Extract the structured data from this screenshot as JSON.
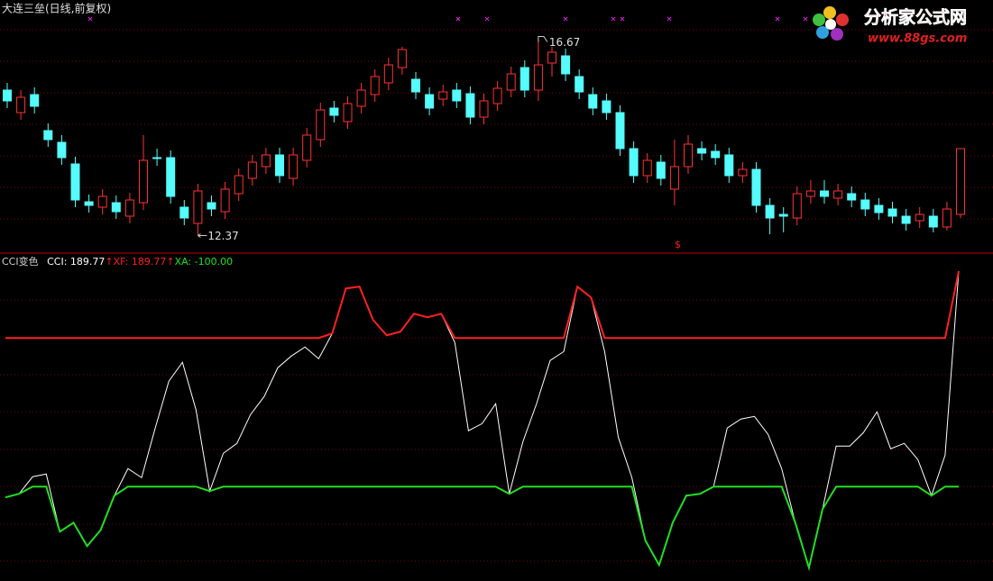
{
  "header": {
    "title": "大连三垒(日线,前复权)"
  },
  "logo": {
    "name": "分析家公式网",
    "url": "www.88gs.com"
  },
  "chart_data": [
    {
      "type": "candlestick",
      "open": [
        15.6,
        15.1,
        15.5,
        14.7,
        14.44,
        13.96,
        13.12,
        13.0,
        13.1,
        12.8,
        13.1,
        14.1,
        14.1,
        13.0,
        12.64,
        13.1,
        12.9,
        13.3,
        13.64,
        13.9,
        14.16,
        13.64,
        14.04,
        14.5,
        15.2,
        14.9,
        15.24,
        15.5,
        15.76,
        16.1,
        15.84,
        15.5,
        15.4,
        15.6,
        15.52,
        15.0,
        15.3,
        15.6,
        16.1,
        15.6,
        16.2,
        16.36,
        15.9,
        15.5,
        15.36,
        15.1,
        14.3,
        13.7,
        14.0,
        13.4,
        13.9,
        14.3,
        14.24,
        14.16,
        13.7,
        13.84,
        13.04,
        12.84,
        12.76,
        13.24,
        13.36,
        13.2,
        13.3,
        13.16,
        13.04,
        12.96,
        12.8,
        12.7,
        12.8,
        12.56,
        12.84
      ],
      "high": [
        15.76,
        15.6,
        15.66,
        14.86,
        14.6,
        14.12,
        13.28,
        13.4,
        13.26,
        13.32,
        14.6,
        14.3,
        14.26,
        13.16,
        13.52,
        13.26,
        13.56,
        13.86,
        14.16,
        14.32,
        14.32,
        14.32,
        14.76,
        15.32,
        15.36,
        15.46,
        15.76,
        16.06,
        16.32,
        16.56,
        16.0,
        15.66,
        15.72,
        15.76,
        15.68,
        15.52,
        15.8,
        16.12,
        16.26,
        16.67,
        16.56,
        16.52,
        16.06,
        15.66,
        15.52,
        15.26,
        14.46,
        14.2,
        14.16,
        14.5,
        14.6,
        14.46,
        14.4,
        14.32,
        14.0,
        14.0,
        13.2,
        13.0,
        13.46,
        13.6,
        13.6,
        13.52,
        13.46,
        13.32,
        13.2,
        13.12,
        12.96,
        13.0,
        12.96,
        13.12,
        14.3
      ],
      "low": [
        15.2,
        14.94,
        15.08,
        14.34,
        13.94,
        13.0,
        12.88,
        12.84,
        12.74,
        12.64,
        12.94,
        13.92,
        13.08,
        12.6,
        12.37,
        12.8,
        12.74,
        13.14,
        13.48,
        13.74,
        13.54,
        13.48,
        13.88,
        14.34,
        14.88,
        14.74,
        15.08,
        15.34,
        15.6,
        15.94,
        15.4,
        15.04,
        15.24,
        15.2,
        14.84,
        14.84,
        15.14,
        15.44,
        15.44,
        15.36,
        15.9,
        15.8,
        15.4,
        15.04,
        14.94,
        14.14,
        13.54,
        13.54,
        13.48,
        13.04,
        13.74,
        14.04,
        13.94,
        13.54,
        13.54,
        12.88,
        12.4,
        12.44,
        12.6,
        13.08,
        13.08,
        13.04,
        13.0,
        12.8,
        12.72,
        12.64,
        12.48,
        12.54,
        12.44,
        12.48,
        12.76
      ],
      "close": [
        15.36,
        15.44,
        15.24,
        14.5,
        14.1,
        13.16,
        13.04,
        13.24,
        12.9,
        13.16,
        14.04,
        14.08,
        13.24,
        12.76,
        13.36,
        12.96,
        13.4,
        13.7,
        14.0,
        14.16,
        13.7,
        14.16,
        14.6,
        15.16,
        15.04,
        15.3,
        15.6,
        15.9,
        16.16,
        16.5,
        15.56,
        15.2,
        15.56,
        15.36,
        15.0,
        15.36,
        15.64,
        15.96,
        15.6,
        16.16,
        16.44,
        15.96,
        15.56,
        15.2,
        15.1,
        14.3,
        13.7,
        14.04,
        13.64,
        13.9,
        14.4,
        14.2,
        14.1,
        13.7,
        13.84,
        13.04,
        12.76,
        12.8,
        13.3,
        13.36,
        13.24,
        13.36,
        13.16,
        12.96,
        12.88,
        12.8,
        12.64,
        12.84,
        12.56,
        12.96,
        14.3
      ],
      "ylim": [
        12,
        17.6
      ],
      "up_color": "#ff3232",
      "down_color": "#54fcfc",
      "high_label": "16.67",
      "low_label": "12.37"
    },
    {
      "type": "line",
      "title": "CCI变色",
      "readouts": [
        {
          "text": "CCI: 189.77",
          "arrow": "↑"
        },
        {
          "text": "XF: 189.77",
          "arrow": "↑"
        },
        {
          "text": "XA: -100.00"
        }
      ],
      "ylim": [
        -227,
        213
      ],
      "series": [
        {
          "name": "CCI",
          "color": "#ffffff",
          "values": [
            -114.5,
            -109.7,
            -86.7,
            -83.0,
            -160.6,
            -148.5,
            -180.0,
            -158.2,
            -112.1,
            -75.8,
            -87.9,
            -21.2,
            41.8,
            67.3,
            3.0,
            -106.1,
            -55.2,
            -41.8,
            -3.0,
            21.2,
            60.0,
            75.8,
            87.9,
            72.1,
            106.1,
            166.7,
            169.1,
            124.2,
            103.6,
            108.5,
            132.7,
            127.9,
            132.7,
            93.9,
            -24.8,
            -15.2,
            11.5,
            -109.7,
            -39.4,
            11.5,
            69.7,
            81.8,
            169.1,
            154.5,
            81.8,
            -33.3,
            -87.9,
            -172.7,
            -205.5,
            -148.5,
            -112.1,
            -109.7,
            -100.0,
            -21.2,
            -9.1,
            -5.5,
            -29.7,
            -75.8,
            -148.5,
            -209.1,
            -130.3,
            -45.5,
            -45.5,
            -27.3,
            0.6,
            -49.1,
            -41.8,
            -63.6,
            -112.1,
            -57.6,
            189.77
          ]
        },
        {
          "name": "XF",
          "color": "#ff2020",
          "values": [
            100,
            100,
            100,
            100,
            100,
            100,
            100,
            100,
            100,
            100,
            100,
            100,
            100,
            100,
            100,
            100,
            100,
            100,
            100,
            100,
            100,
            100,
            100,
            100,
            106.1,
            166.7,
            169.1,
            124.2,
            103.6,
            108.5,
            132.7,
            127.9,
            132.7,
            100,
            100,
            100,
            100,
            100,
            100,
            100,
            100,
            100,
            169.1,
            154.5,
            100,
            100,
            100,
            100,
            100,
            100,
            100,
            100,
            100,
            100,
            100,
            100,
            100,
            100,
            100,
            100,
            100,
            100,
            100,
            100,
            100,
            100,
            100,
            100,
            100,
            100,
            189.77
          ]
        },
        {
          "name": "XA",
          "color": "#20e020",
          "values": [
            -114.5,
            -109.7,
            -100,
            -100,
            -160.6,
            -148.5,
            -180.0,
            -158.2,
            -112.1,
            -100,
            -100,
            -100,
            -100,
            -100,
            -100,
            -106.1,
            -100,
            -100,
            -100,
            -100,
            -100,
            -100,
            -100,
            -100,
            -100,
            -100,
            -100,
            -100,
            -100,
            -100,
            -100,
            -100,
            -100,
            -100,
            -100,
            -100,
            -100,
            -109.7,
            -100,
            -100,
            -100,
            -100,
            -100,
            -100,
            -100,
            -100,
            -100,
            -172.7,
            -205.5,
            -148.5,
            -112.1,
            -109.7,
            -100,
            -100,
            -100,
            -100,
            -100,
            -100,
            -148.5,
            -209.1,
            -130.3,
            -100,
            -100,
            -100,
            -100,
            -100,
            -100,
            -100,
            -112.1,
            -100,
            -100
          ]
        }
      ]
    }
  ]
}
